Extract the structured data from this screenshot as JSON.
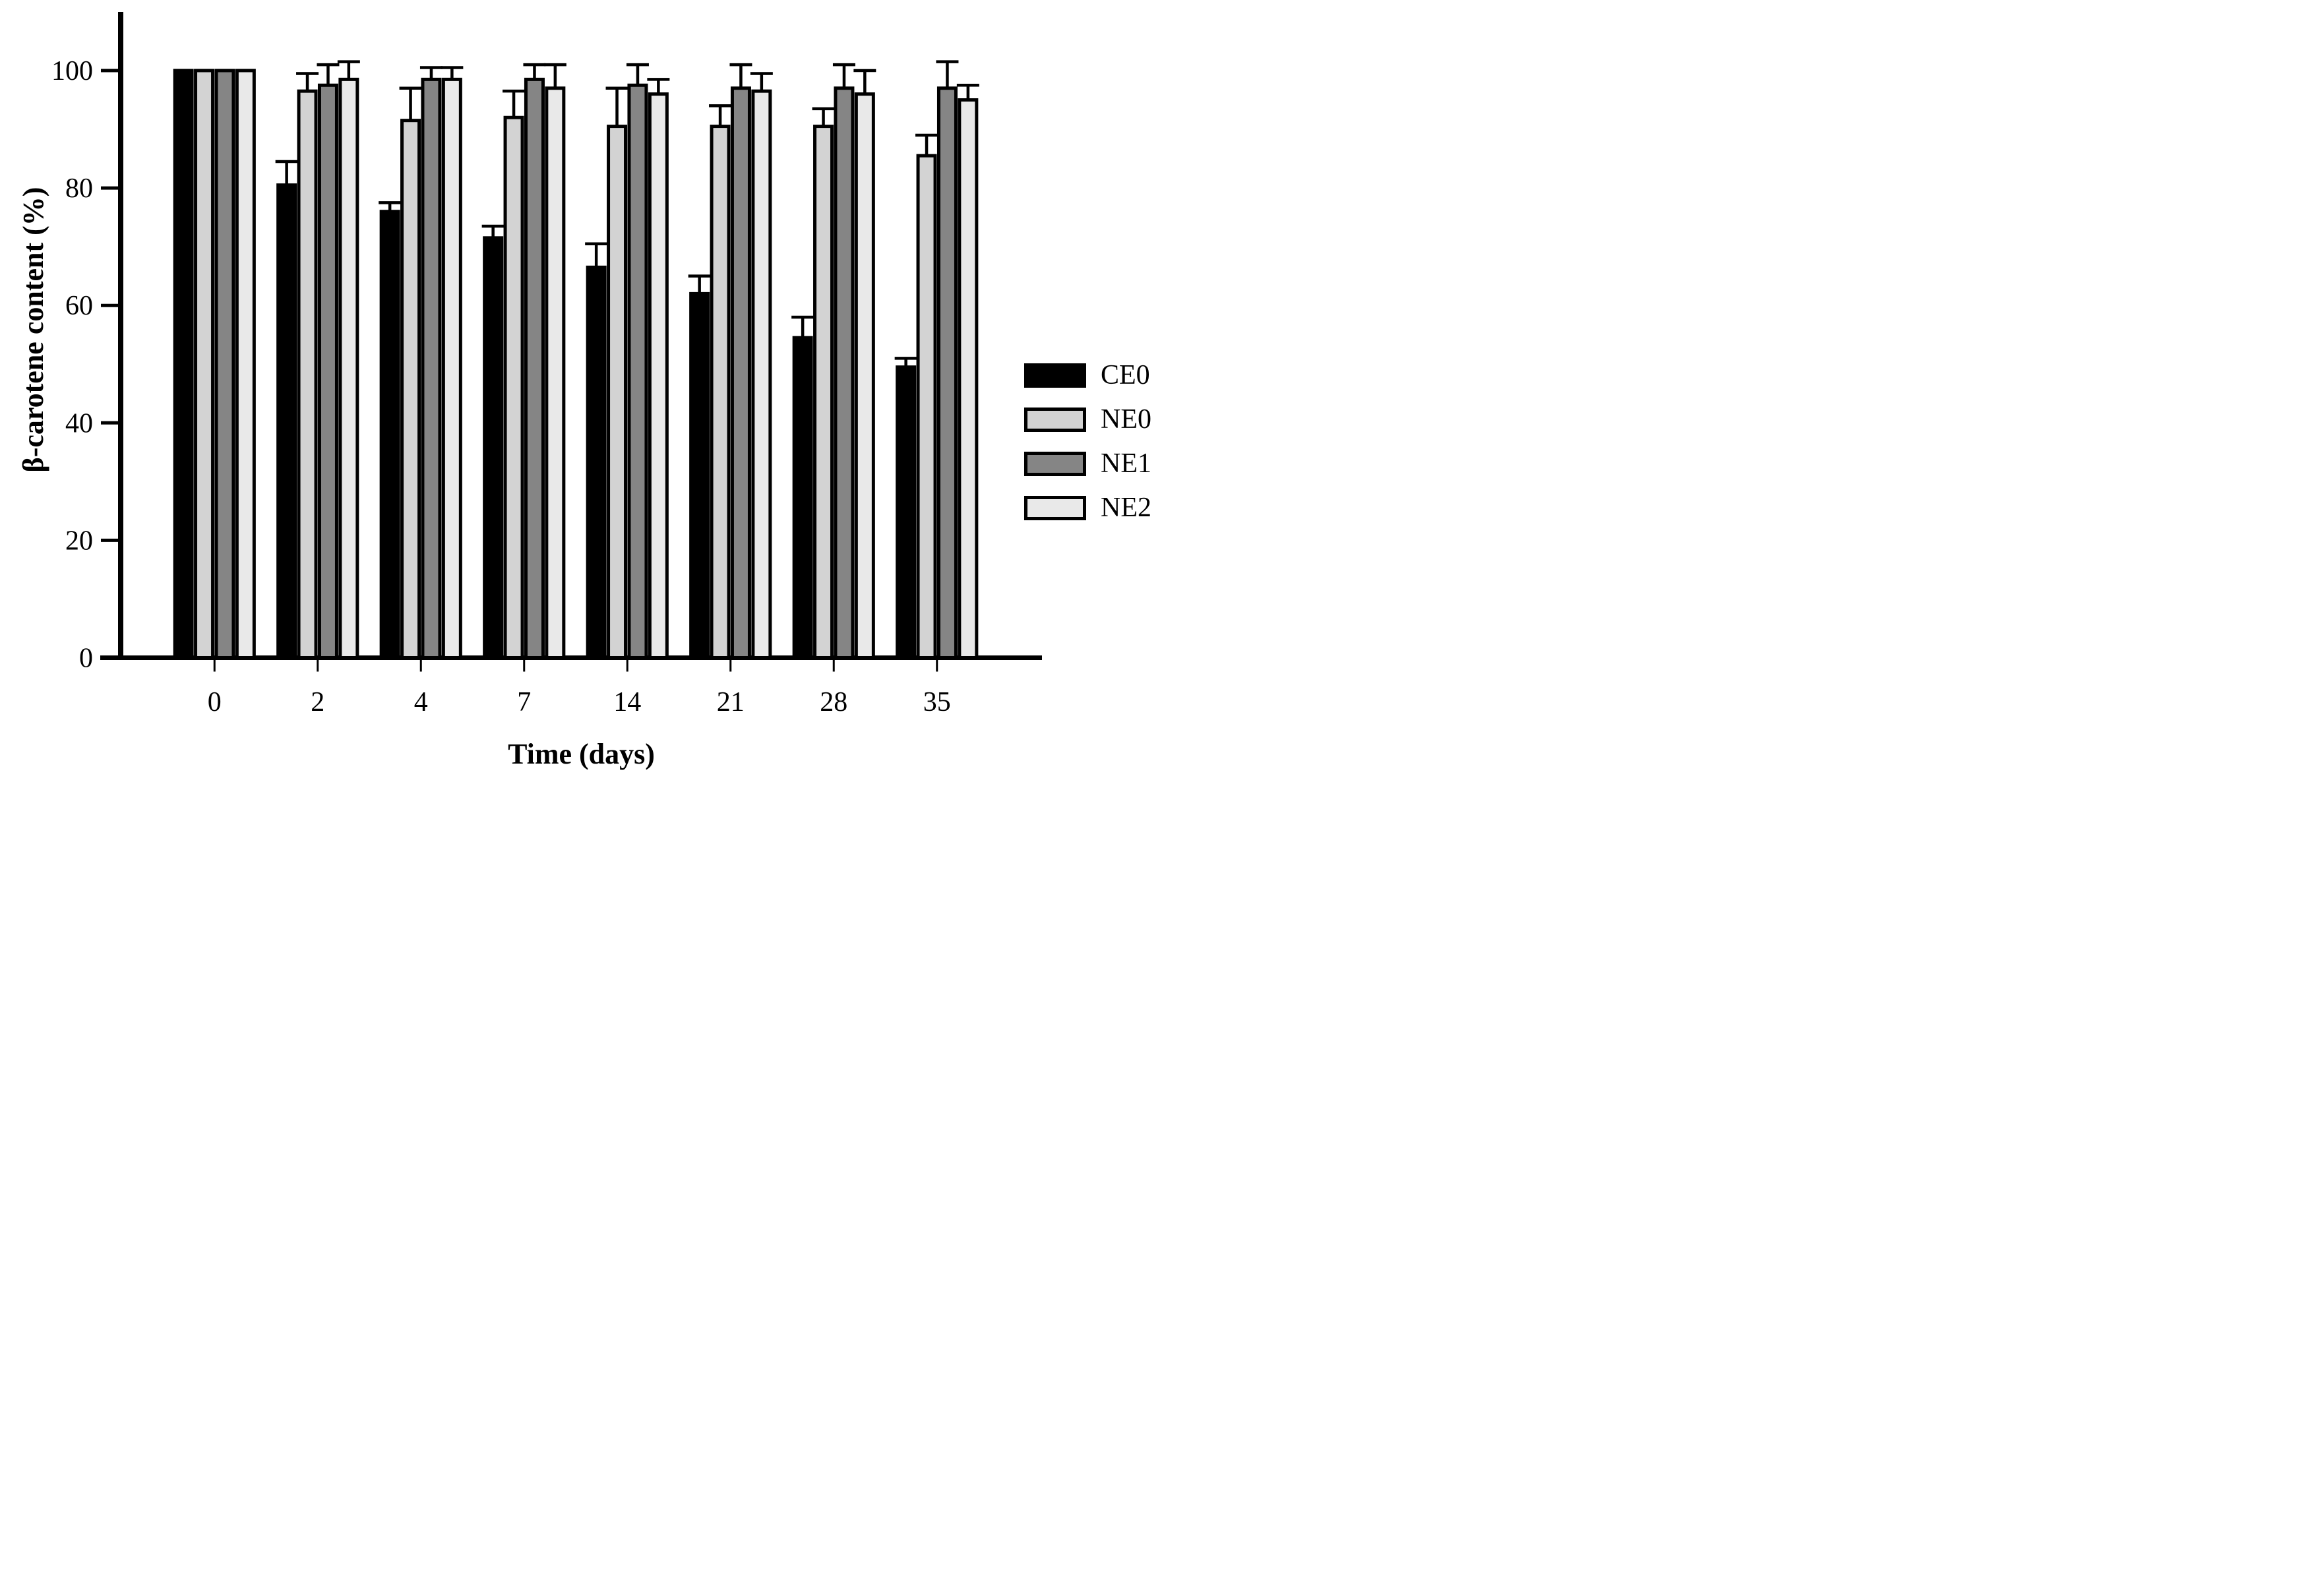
{
  "chart_data": {
    "type": "bar",
    "title": "",
    "xlabel": "Time (days)",
    "ylabel": "β-carotene content (%)",
    "categories": [
      "0",
      "2",
      "4",
      "7",
      "14",
      "21",
      "28",
      "35"
    ],
    "series": [
      {
        "name": "CE0",
        "color": "#000000",
        "values": [
          100,
          80.5,
          76,
          71.5,
          66.5,
          62,
          54.5,
          49.5
        ],
        "errors": [
          0,
          4,
          1.5,
          2,
          4,
          3,
          3.5,
          1.5
        ]
      },
      {
        "name": "NE0",
        "color": "#d3d3d3",
        "values": [
          100,
          96.5,
          91.5,
          92,
          90.5,
          90.5,
          90.5,
          85.5
        ],
        "errors": [
          0,
          3,
          5.5,
          4.5,
          6.5,
          3.5,
          3,
          3.5
        ]
      },
      {
        "name": "NE1",
        "color": "#858585",
        "values": [
          100,
          97.5,
          98.5,
          98.5,
          97.5,
          97,
          97,
          97
        ],
        "errors": [
          0,
          3.5,
          2,
          2.5,
          3.5,
          4,
          4,
          4.5
        ]
      },
      {
        "name": "NE2",
        "color": "#e9e9e9",
        "values": [
          100,
          98.5,
          98.5,
          97,
          96,
          96.5,
          96,
          95
        ],
        "errors": [
          0,
          3,
          2,
          4,
          2.5,
          3,
          4,
          2.5
        ]
      }
    ],
    "y_ticks": [
      0,
      20,
      40,
      60,
      80,
      100
    ],
    "ylim": [
      0,
      110
    ],
    "grid": false,
    "legend_position": "right",
    "axis_color": "#000000",
    "bar_outline_color": "#000000",
    "error_bar_color": "#000000",
    "error_bar_direction": "upper-only"
  }
}
